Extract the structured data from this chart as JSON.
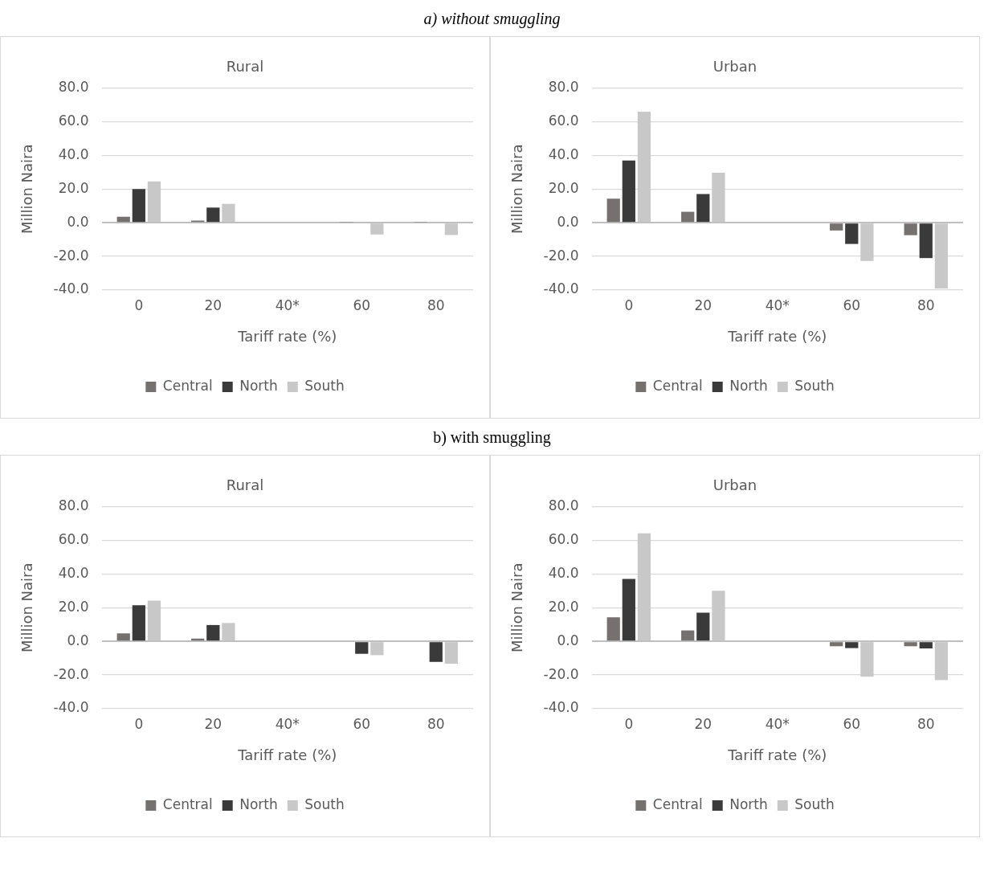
{
  "chart_data": [
    {
      "type": "bar",
      "subtitle": "a)    without smuggling",
      "title": "Rural",
      "xlabel": "Tariff rate (%)",
      "ylabel": "Million Naira",
      "categories": [
        "0",
        "20",
        "40*",
        "60",
        "80"
      ],
      "series": [
        {
          "name": "Central",
          "color": "#767171",
          "values": [
            3.5,
            1.3,
            null,
            0.3,
            0.3
          ]
        },
        {
          "name": "North",
          "color": "#3a3a3a",
          "values": [
            20,
            9,
            null,
            null,
            null
          ]
        },
        {
          "name": "South",
          "color": "#c8c8c8",
          "values": [
            24.5,
            11.2,
            null,
            -7,
            -7.3
          ]
        }
      ],
      "ylim": [
        -40,
        80
      ],
      "yticks": [
        {
          "value": -40,
          "label": "-40.0"
        },
        {
          "value": -20,
          "label": "-20.0"
        },
        {
          "value": 0,
          "label": "0.0"
        },
        {
          "value": 20,
          "label": "20.0"
        },
        {
          "value": 40,
          "label": "40.0"
        },
        {
          "value": 60,
          "label": "60.0"
        },
        {
          "value": 80,
          "label": "80.0"
        }
      ],
      "grid": "y",
      "legend": "bottom"
    },
    {
      "type": "bar",
      "title": "Urban",
      "xlabel": "Tariff rate (%)",
      "ylabel": "Million Naira",
      "categories": [
        "0",
        "20",
        "40*",
        "60",
        "80"
      ],
      "series": [
        {
          "name": "Central",
          "color": "#767171",
          "values": [
            14.3,
            6.5,
            null,
            -4.6,
            -7.4
          ]
        },
        {
          "name": "North",
          "color": "#3a3a3a",
          "values": [
            37,
            17,
            null,
            -12.6,
            -21
          ]
        },
        {
          "name": "South",
          "color": "#c8c8c8",
          "values": [
            66,
            29.7,
            null,
            -22.7,
            -39
          ]
        }
      ],
      "ylim": [
        -40,
        80
      ],
      "yticks": [
        {
          "value": -40,
          "label": "-40.0"
        },
        {
          "value": -20,
          "label": "-20.0"
        },
        {
          "value": 0,
          "label": "0.0"
        },
        {
          "value": 20,
          "label": "20.0"
        },
        {
          "value": 40,
          "label": "40.0"
        },
        {
          "value": 60,
          "label": "60.0"
        },
        {
          "value": 80,
          "label": "80.0"
        }
      ],
      "grid": "y",
      "legend": "bottom"
    },
    {
      "type": "bar",
      "subtitle": "b)    with smuggling",
      "title": "Rural",
      "xlabel": "Tariff rate (%)",
      "ylabel": "Million Naira",
      "categories": [
        "0",
        "20",
        "40*",
        "60",
        "80"
      ],
      "series": [
        {
          "name": "Central",
          "color": "#767171",
          "values": [
            4.8,
            1.7,
            null,
            null,
            null
          ]
        },
        {
          "name": "North",
          "color": "#3a3a3a",
          "values": [
            21.5,
            9.7,
            null,
            -7.4,
            -12.2
          ]
        },
        {
          "name": "South",
          "color": "#c8c8c8",
          "values": [
            24.2,
            10.9,
            null,
            -8.2,
            -13.3
          ]
        }
      ],
      "ylim": [
        -40,
        80
      ],
      "yticks": [
        {
          "value": -40,
          "label": "-40.0"
        },
        {
          "value": -20,
          "label": "-20.0"
        },
        {
          "value": 0,
          "label": "0.0"
        },
        {
          "value": 20,
          "label": "20.0"
        },
        {
          "value": 40,
          "label": "40.0"
        },
        {
          "value": 60,
          "label": "60.0"
        },
        {
          "value": 80,
          "label": "80.0"
        }
      ],
      "grid": "y",
      "legend": "bottom"
    },
    {
      "type": "bar",
      "title": "Urban",
      "xlabel": "Tariff rate (%)",
      "ylabel": "Million Naira",
      "categories": [
        "0",
        "20",
        "40*",
        "60",
        "80"
      ],
      "series": [
        {
          "name": "Central",
          "color": "#767171",
          "values": [
            14.3,
            6.5,
            null,
            -2.9,
            -2.9
          ]
        },
        {
          "name": "North",
          "color": "#3a3a3a",
          "values": [
            37.1,
            17,
            null,
            -4,
            -4.2
          ]
        },
        {
          "name": "South",
          "color": "#c8c8c8",
          "values": [
            64.2,
            30,
            null,
            -21,
            -23
          ]
        }
      ],
      "ylim": [
        -40,
        80
      ],
      "yticks": [
        {
          "value": -40,
          "label": "-40.0"
        },
        {
          "value": -20,
          "label": "-20.0"
        },
        {
          "value": 0,
          "label": "0.0"
        },
        {
          "value": 20,
          "label": "20.0"
        },
        {
          "value": 40,
          "label": "40.0"
        },
        {
          "value": 60,
          "label": "60.0"
        },
        {
          "value": 80,
          "label": "80.0"
        }
      ],
      "grid": "y",
      "legend": "bottom"
    }
  ]
}
